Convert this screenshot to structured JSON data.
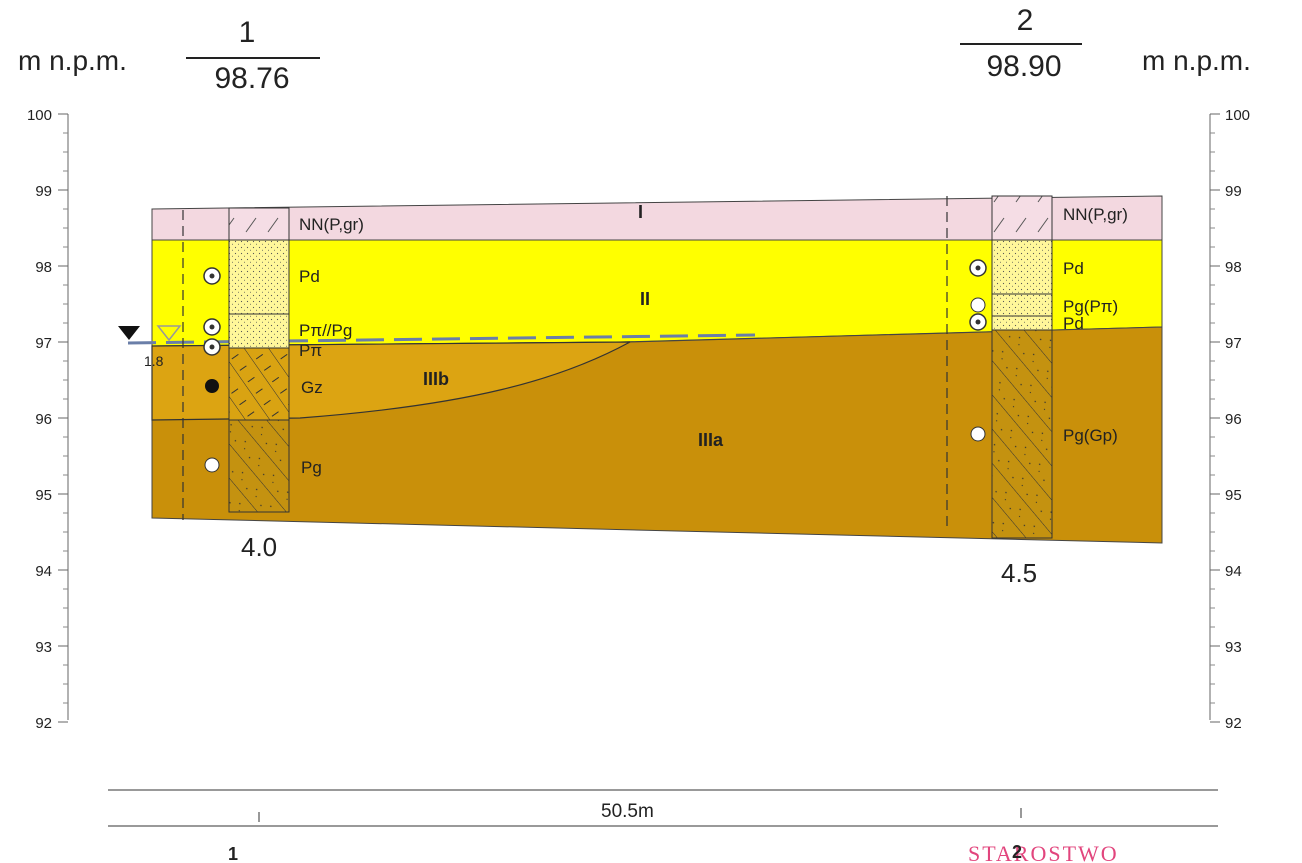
{
  "header": {
    "units_left": "m n.p.m.",
    "units_right": "m n.p.m.",
    "boreholes": [
      {
        "number": "1",
        "elevation": "98.76",
        "depth": "4.0"
      },
      {
        "number": "2",
        "elevation": "98.90",
        "depth": "4.5"
      }
    ]
  },
  "axis": {
    "ticks": [
      "100",
      "99",
      "98",
      "97",
      "96",
      "95",
      "94",
      "93",
      "92"
    ]
  },
  "layers": {
    "I": "I",
    "II": "II",
    "IIIa": "IIIa",
    "IIIb": "IIIb"
  },
  "borehole1_labels": [
    "NN(P,gr)",
    "Pd",
    "Pπ//Pg",
    "Pπ",
    "Gz",
    "Pg"
  ],
  "borehole2_labels": [
    "NN(P,gr)",
    "Pd",
    "Pg(Pπ)",
    "Pd",
    "Pg(Gp)"
  ],
  "water_level": {
    "depth": "1.8"
  },
  "scale": {
    "distance": "50.5m",
    "left_label": "1",
    "right_label": "2"
  },
  "stamp": {
    "text": "STAROSTWO"
  },
  "colors": {
    "layer_I": "#f3d8e0",
    "layer_II": "#ffff00",
    "layer_IIIa": "#c9900a",
    "layer_IIIb": "#dca412",
    "water_dash": "#6a7ea8"
  }
}
